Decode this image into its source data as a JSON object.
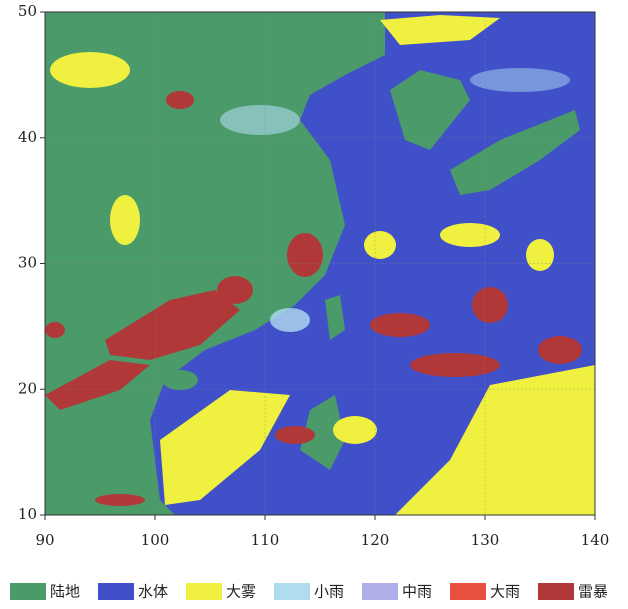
{
  "map": {
    "xlim": [
      90,
      140
    ],
    "ylim": [
      10,
      50
    ],
    "xticks": [
      90,
      100,
      110,
      120,
      130,
      140
    ],
    "yticks": [
      10,
      20,
      30,
      40,
      50
    ],
    "legend": [
      {
        "label": "陆地",
        "color": "#4a9a6a"
      },
      {
        "label": "水体",
        "color": "#4050c8"
      },
      {
        "label": "大雾",
        "color": "#f0f040"
      },
      {
        "label": "小雨",
        "color": "#b0dcf0"
      },
      {
        "label": "中雨",
        "color": "#b0b0e8"
      },
      {
        "label": "大雨",
        "color": "#e85040"
      },
      {
        "label": "雷暴",
        "color": "#b03838"
      }
    ]
  }
}
